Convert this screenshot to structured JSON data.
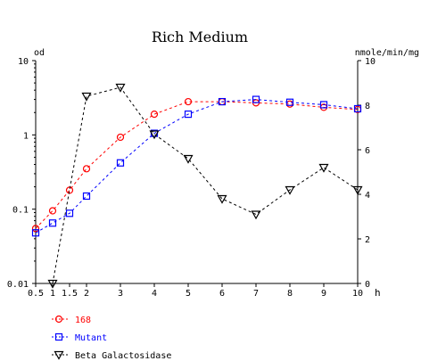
{
  "chart_data": {
    "type": "line",
    "title": "Rich Medium",
    "x": [
      0.5,
      1,
      1.5,
      2,
      3,
      4,
      5,
      6,
      7,
      8,
      9,
      10
    ],
    "x_tick_labels": [
      "0.5",
      "1",
      "1.5",
      "2",
      "3",
      "4",
      "5",
      "6",
      "7",
      "8",
      "9",
      "10"
    ],
    "x_unit": "h",
    "xlim": [
      0.5,
      10
    ],
    "y_left": {
      "label": "od",
      "scale": "log",
      "ylim": [
        0.01,
        10
      ],
      "tick_labels": [
        "10",
        "1",
        "0.1",
        "0.01"
      ]
    },
    "y_right": {
      "label": "nmole/min/mg",
      "scale": "linear",
      "ylim": [
        0,
        10
      ],
      "tick_labels": [
        "10",
        "8",
        "6",
        "4",
        "2",
        "0"
      ]
    },
    "grid": false,
    "legend_position": "bottom-left",
    "series": [
      {
        "name": "168",
        "axis": "left",
        "color": "#ff0000",
        "marker": "circle",
        "x": [
          0.5,
          1,
          1.5,
          2,
          3,
          4,
          5,
          6,
          7,
          8,
          9,
          10
        ],
        "values": [
          0.055,
          0.095,
          0.18,
          0.35,
          0.93,
          1.9,
          2.8,
          2.8,
          2.7,
          2.6,
          2.35,
          2.2
        ]
      },
      {
        "name": "Mutant",
        "axis": "left",
        "color": "#0000ff",
        "marker": "square",
        "x": [
          0.5,
          1,
          1.5,
          2,
          3,
          4,
          5,
          6,
          7,
          8,
          9,
          10
        ],
        "values": [
          0.048,
          0.065,
          0.088,
          0.15,
          0.42,
          1.05,
          1.9,
          2.8,
          3.0,
          2.75,
          2.55,
          2.25
        ]
      },
      {
        "name": "Beta Galactosidase",
        "axis": "right",
        "color": "#000000",
        "marker": "triangle-down",
        "x": [
          1,
          2,
          3,
          4,
          5,
          6,
          7,
          8,
          9,
          10
        ],
        "values": [
          0,
          8.4,
          8.8,
          6.7,
          5.6,
          3.8,
          3.1,
          4.2,
          5.2,
          4.2
        ]
      }
    ]
  }
}
